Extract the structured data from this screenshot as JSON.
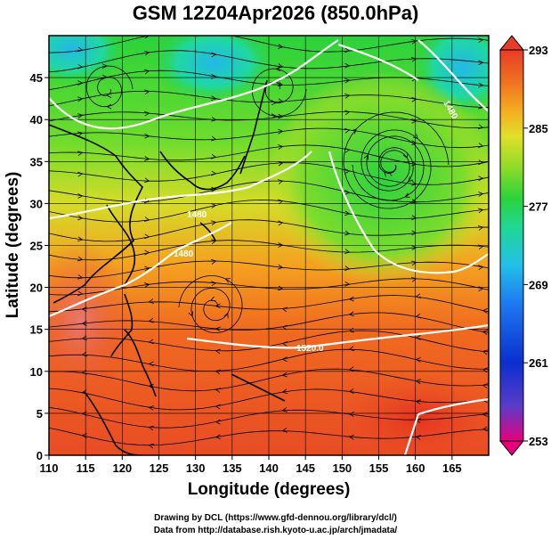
{
  "title": "GSM 12Z04Apr2026 (850.0hPa)",
  "x_axis": {
    "label": "Longitude (degrees)",
    "ticks": [
      110,
      115,
      120,
      125,
      130,
      135,
      140,
      145,
      150,
      155,
      160,
      165
    ],
    "range": [
      110,
      170
    ]
  },
  "y_axis": {
    "label": "Latitude (degrees)",
    "ticks": [
      0,
      5,
      10,
      15,
      20,
      25,
      30,
      35,
      40,
      45
    ],
    "range": [
      0,
      50
    ]
  },
  "colorbar": {
    "ticks": [
      "293",
      "285",
      "277",
      "269",
      "261",
      "253"
    ],
    "min": 253,
    "max": 293,
    "colors": [
      "#e6007e",
      "#5a3cc8",
      "#0a2fd0",
      "#1e78f0",
      "#22c0e8",
      "#20d890",
      "#2ad23c",
      "#8fdc28",
      "#e0e028",
      "#f4b020",
      "#f07020",
      "#e83c28"
    ]
  },
  "contours": [
    {
      "label": "1520.0"
    },
    {
      "label": "1480"
    },
    {
      "label": "1480"
    },
    {
      "label": "1480"
    }
  ],
  "credits": {
    "line1": "Drawing by DCL (https://www.gfd-dennou.org/library/dcl/)",
    "line2": "Data from http://database.rish.kyoto-u.ac.jp/arch/jmadata/"
  }
}
